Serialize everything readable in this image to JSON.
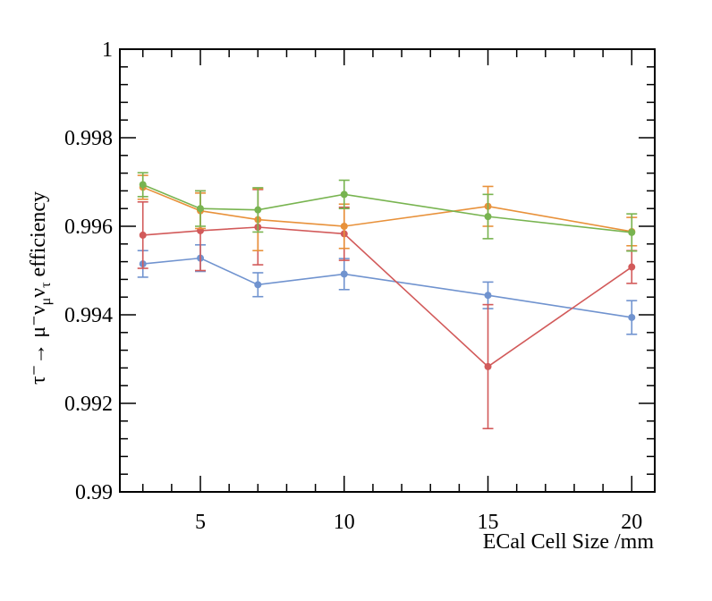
{
  "chart_data": {
    "type": "line",
    "title": "",
    "xlabel": "ECal Cell Size /mm",
    "ylabel": {
      "text": "τ⁻→ μ⁻ν",
      "sub1": "μ",
      "mid": "ν",
      "sub2": "τ",
      "tail": " efficiency"
    },
    "xlim": [
      2.2,
      20.8
    ],
    "ylim": [
      0.99,
      1.0
    ],
    "x_ticks": [
      5,
      10,
      15,
      20
    ],
    "y_ticks": [
      0.99,
      0.992,
      0.994,
      0.996,
      0.998,
      1
    ],
    "x_tick_labels": [
      "5",
      "10",
      "15",
      "20"
    ],
    "y_tick_labels": [
      "0.99",
      "0.992",
      "0.994",
      "0.996",
      "0.998",
      "1"
    ],
    "grid": false,
    "series": [
      {
        "color": "#7093cf",
        "x": [
          3,
          5,
          7,
          10,
          15,
          20
        ],
        "y": [
          0.99515,
          0.99528,
          0.99468,
          0.99492,
          0.99444,
          0.99394
        ],
        "err": [
          0.0003,
          0.0003,
          0.00027,
          0.00035,
          0.0003,
          0.00038
        ]
      },
      {
        "color": "#d25a5a",
        "x": [
          3,
          5,
          7,
          10,
          15,
          20
        ],
        "y": [
          0.9958,
          0.9959,
          0.99598,
          0.99583,
          0.99283,
          0.99508
        ],
        "err": [
          0.00075,
          0.0009,
          0.00085,
          0.0006,
          0.0014,
          0.00037
        ]
      },
      {
        "color": "#e8913a",
        "x": [
          3,
          5,
          7,
          10,
          15,
          20
        ],
        "y": [
          0.99688,
          0.99635,
          0.99615,
          0.996,
          0.99645,
          0.99588
        ],
        "err": [
          0.00027,
          0.0004,
          0.0007,
          0.0005,
          0.00045,
          0.00032
        ]
      },
      {
        "color": "#78b450",
        "x": [
          3,
          5,
          7,
          10,
          15,
          20
        ],
        "y": [
          0.99694,
          0.9964,
          0.99637,
          0.99672,
          0.99622,
          0.99586
        ],
        "err": [
          0.00027,
          0.0004,
          0.0005,
          0.00032,
          0.0005,
          0.00042
        ]
      }
    ]
  }
}
